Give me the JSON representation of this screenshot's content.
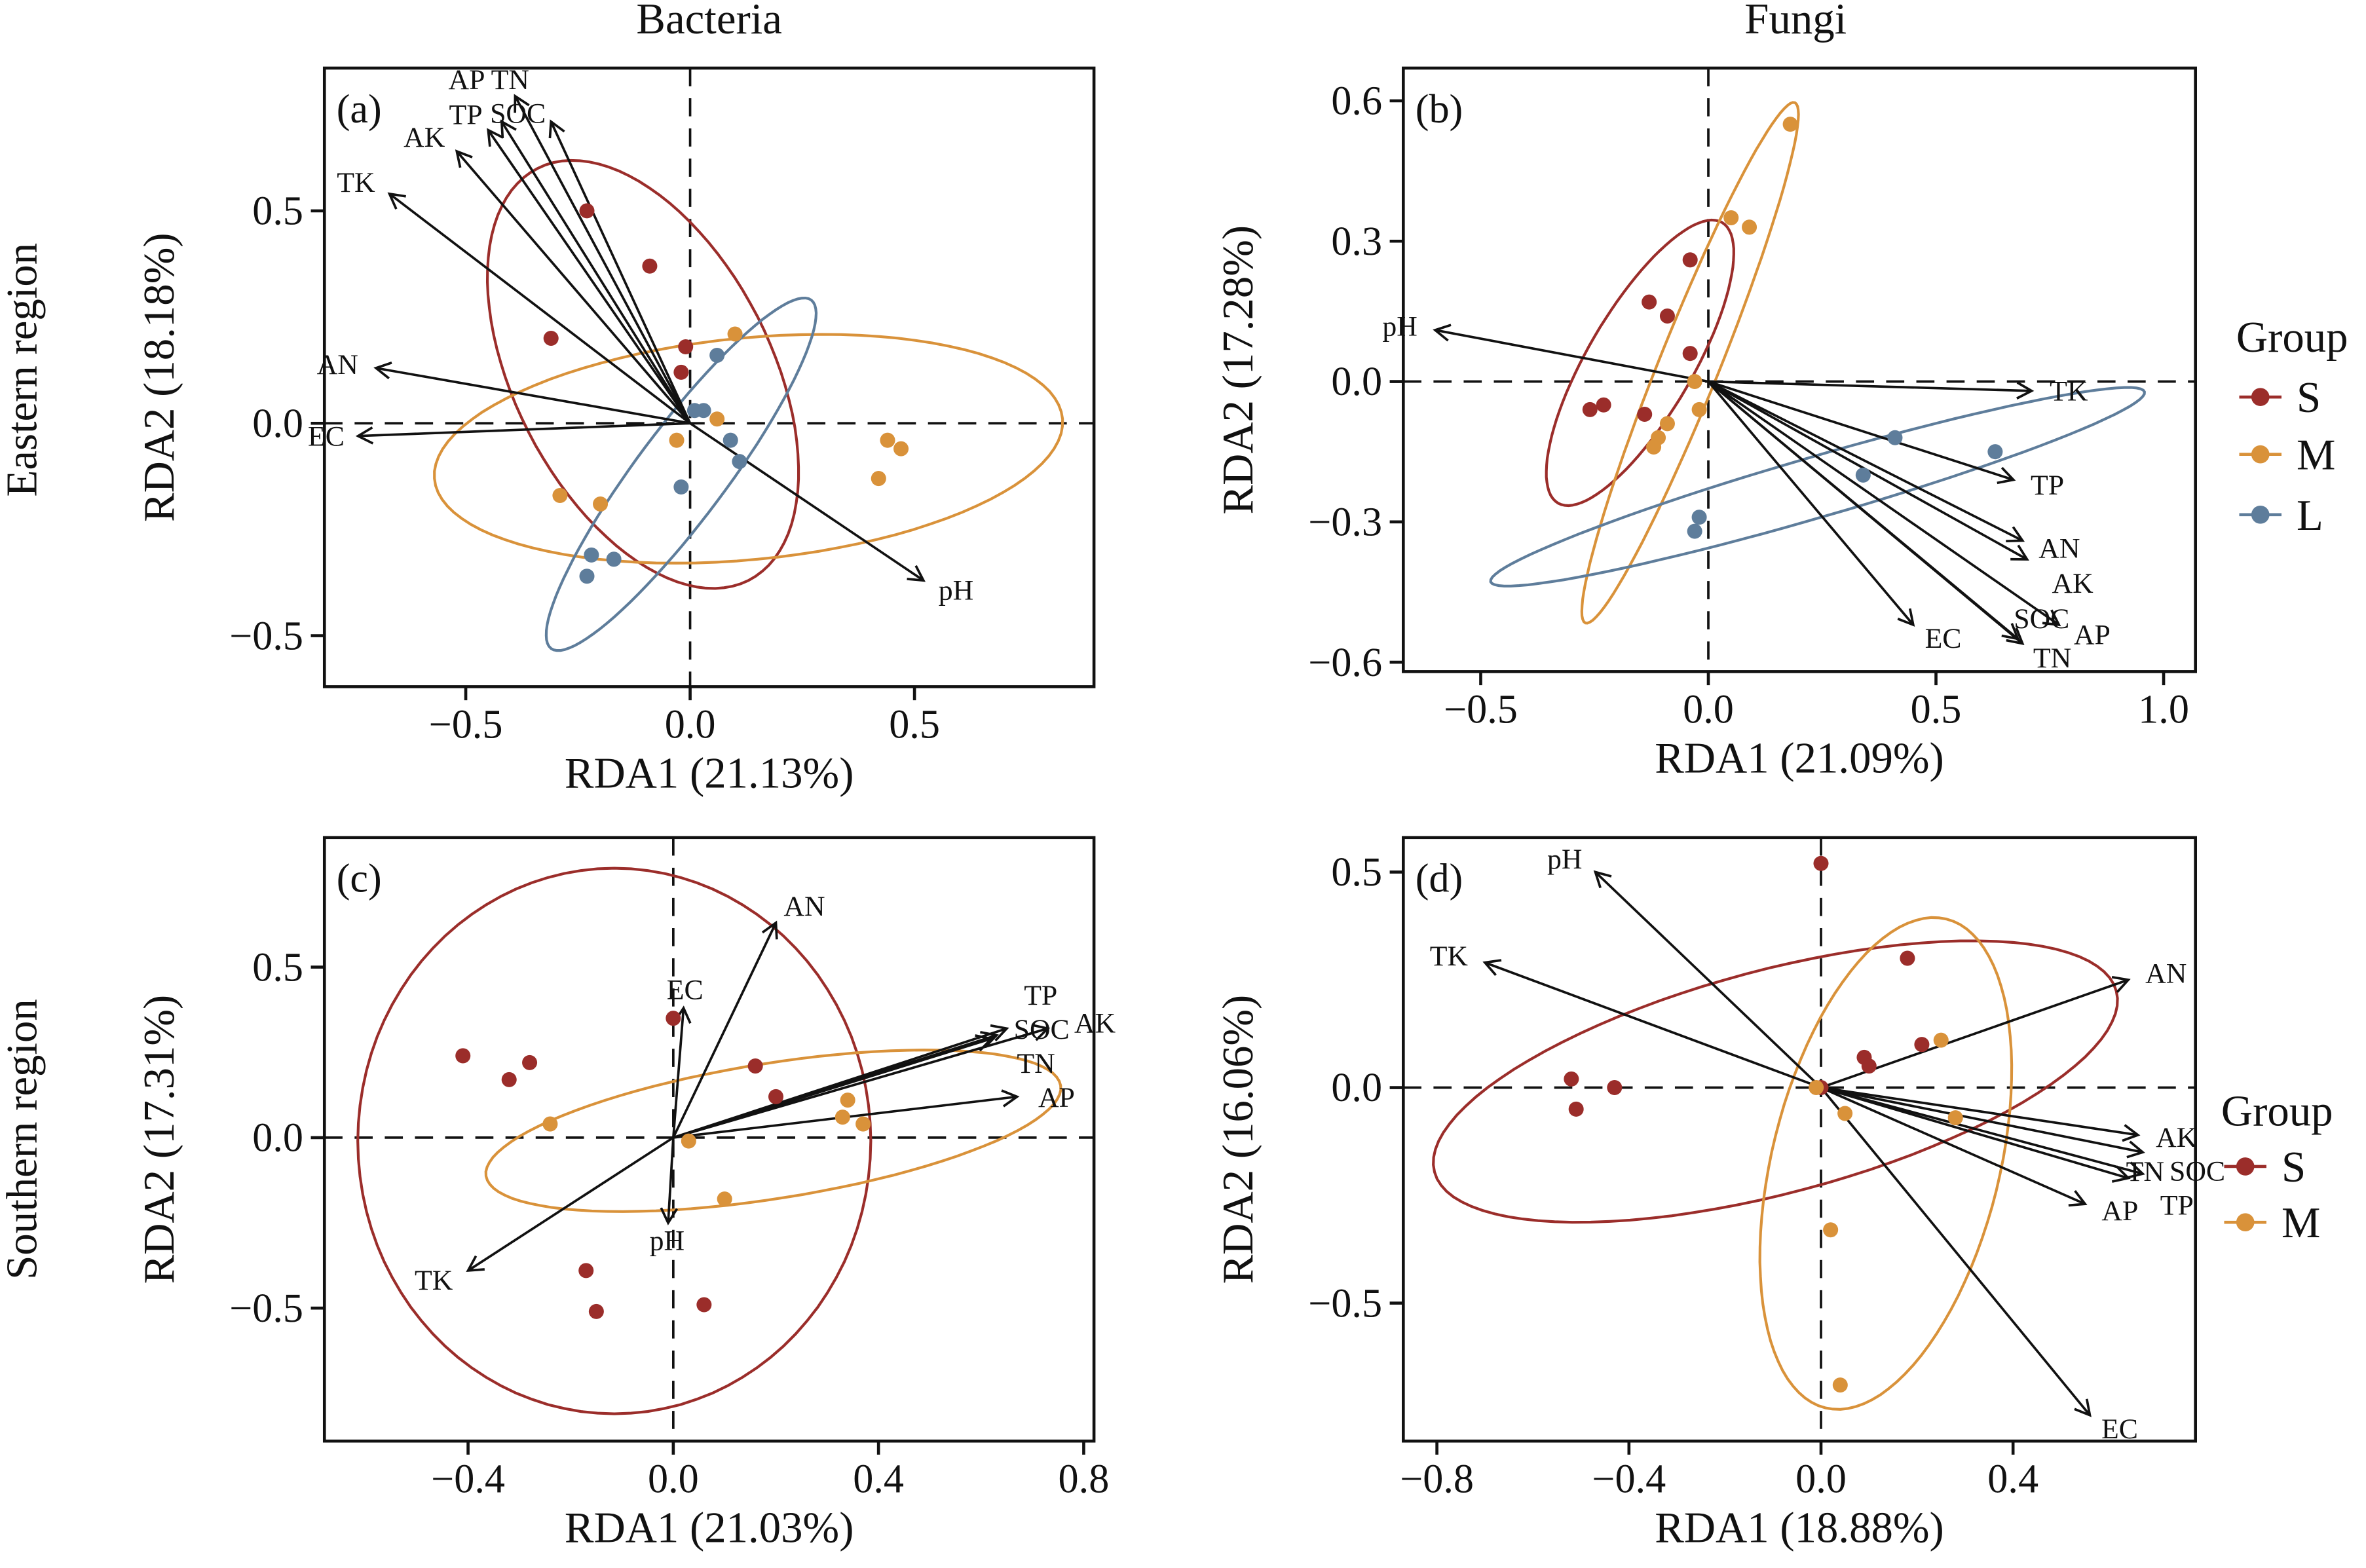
{
  "headers": {
    "col1": "Bacteria",
    "col2": "Fungi",
    "row1": "Eastern region",
    "row2": "Southern region"
  },
  "legend_east": {
    "title": "Group",
    "items": [
      "S",
      "M",
      "L"
    ]
  },
  "legend_south": {
    "title": "Group",
    "items": [
      "S",
      "M"
    ]
  },
  "colors": {
    "S": "#9b2d2a",
    "M": "#d9923a",
    "L": "#5e7d9b"
  },
  "chart_data": [
    {
      "type": "scatter",
      "panel": "(a)",
      "title": "Bacteria",
      "region": "Eastern region",
      "xlabel": "RDA1 (21.13%)",
      "ylabel": "RDA2 (18.18%)",
      "xlim": [
        -0.815,
        0.9
      ],
      "ylim": [
        -0.62,
        0.836
      ],
      "xticks": [
        -0.5,
        0.0,
        0.5
      ],
      "xtick_labels": [
        "−0.5",
        "0.0",
        "0.5"
      ],
      "yticks": [
        -0.5,
        0.0,
        0.5
      ],
      "ytick_labels": [
        "−0.5",
        "0.0",
        "0.5"
      ],
      "series": [
        {
          "name": "S",
          "points": [
            [
              -0.23,
              0.5
            ],
            [
              -0.09,
              0.37
            ],
            [
              -0.31,
              0.2
            ],
            [
              -0.01,
              0.18
            ],
            [
              -0.02,
              0.12
            ]
          ],
          "ellipse": {
            "center": [
              -0.105,
              0.115
            ],
            "u": [
              -0.235,
              0.485
            ],
            "v": [
              0.255,
              0.136
            ]
          }
        },
        {
          "name": "M",
          "points": [
            [
              0.1,
              0.21
            ],
            [
              0.06,
              0.01
            ],
            [
              -0.03,
              -0.04
            ],
            [
              -0.29,
              -0.17
            ],
            [
              -0.2,
              -0.19
            ],
            [
              0.44,
              -0.04
            ],
            [
              0.47,
              -0.06
            ],
            [
              0.42,
              -0.13
            ]
          ],
          "ellipse": {
            "center": [
              0.13,
              -0.06
            ],
            "u": [
              0.7,
              0.07
            ],
            "v": [
              0.02,
              -0.26
            ]
          }
        },
        {
          "name": "L",
          "points": [
            [
              0.06,
              0.16
            ],
            [
              0.01,
              0.03
            ],
            [
              0.03,
              0.03
            ],
            [
              0.09,
              -0.04
            ],
            [
              0.11,
              -0.09
            ],
            [
              -0.02,
              -0.15
            ],
            [
              -0.22,
              -0.31
            ],
            [
              -0.17,
              -0.32
            ],
            [
              -0.23,
              -0.36
            ]
          ],
          "ellipse": {
            "center": [
              -0.02,
              -0.12
            ],
            "u": [
              0.29,
              0.41
            ],
            "v": [
              0.08,
              -0.064
            ]
          }
        }
      ],
      "vectors": [
        {
          "name": "TK",
          "x": -0.67,
          "y": 0.54
        },
        {
          "name": "AK",
          "x": -0.52,
          "y": 0.64
        },
        {
          "name": "TP",
          "x": -0.45,
          "y": 0.69
        },
        {
          "name": "AP",
          "x": -0.42,
          "y": 0.71
        },
        {
          "name": "TN",
          "x": -0.39,
          "y": 0.77
        },
        {
          "name": "SOC",
          "x": -0.31,
          "y": 0.71
        },
        {
          "name": "AN",
          "x": -0.7,
          "y": 0.13
        },
        {
          "name": "EC",
          "x": -0.74,
          "y": -0.03
        },
        {
          "name": "pH",
          "x": 0.52,
          "y": -0.37
        }
      ]
    },
    {
      "type": "scatter",
      "panel": "(b)",
      "title": "Fungi",
      "region": "Eastern region",
      "xlabel": "RDA1 (21.09%)",
      "ylabel": "RDA2 (17.28%)",
      "xlim": [
        -0.67,
        1.07
      ],
      "ylim": [
        -0.62,
        0.67
      ],
      "xticks": [
        -0.5,
        0.0,
        0.5,
        1.0
      ],
      "xtick_labels": [
        "−0.5",
        "0.0",
        "0.5",
        "1.0"
      ],
      "yticks": [
        -0.6,
        -0.3,
        0.0,
        0.3,
        0.6
      ],
      "ytick_labels": [
        "−0.6",
        "−0.3",
        "0.0",
        "0.3",
        "0.6"
      ],
      "series": [
        {
          "name": "S",
          "points": [
            [
              -0.04,
              0.26
            ],
            [
              -0.13,
              0.17
            ],
            [
              -0.09,
              0.14
            ],
            [
              -0.04,
              0.06
            ],
            [
              -0.26,
              -0.06
            ],
            [
              -0.23,
              -0.05
            ],
            [
              -0.14,
              -0.07
            ]
          ],
          "ellipse": {
            "center": [
              -0.15,
              0.04
            ],
            "u": [
              0.18,
              0.3
            ],
            "v": [
              0.1,
              -0.056
            ]
          }
        },
        {
          "name": "M",
          "points": [
            [
              0.18,
              0.55
            ],
            [
              0.05,
              0.35
            ],
            [
              0.09,
              0.33
            ],
            [
              -0.03,
              0.0
            ],
            [
              -0.02,
              -0.06
            ],
            [
              -0.09,
              -0.09
            ],
            [
              -0.11,
              -0.12
            ],
            [
              -0.12,
              -0.14
            ]
          ],
          "ellipse": {
            "center": [
              -0.04,
              0.04
            ],
            "u": [
              0.23,
              0.556
            ],
            "v": [
              0.061,
              -0.024
            ]
          }
        },
        {
          "name": "L",
          "points": [
            [
              0.41,
              -0.12
            ],
            [
              0.63,
              -0.15
            ],
            [
              0.34,
              -0.2
            ],
            [
              -0.02,
              -0.29
            ],
            [
              -0.03,
              -0.32
            ]
          ],
          "ellipse": {
            "center": [
              0.24,
              -0.225
            ],
            "u": [
              0.718,
              0.203
            ],
            "v": [
              0.019,
              -0.062
            ]
          }
        }
      ],
      "vectors": [
        {
          "name": "pH",
          "x": -0.6,
          "y": 0.11
        },
        {
          "name": "TK",
          "x": 0.71,
          "y": -0.02
        },
        {
          "name": "TP",
          "x": 0.67,
          "y": -0.21
        },
        {
          "name": "AN",
          "x": 0.69,
          "y": -0.34
        },
        {
          "name": "AK",
          "x": 0.7,
          "y": -0.38
        },
        {
          "name": "AP",
          "x": 0.77,
          "y": -0.52
        },
        {
          "name": "TN",
          "x": 0.69,
          "y": -0.56
        },
        {
          "name": "SOC",
          "x": 0.68,
          "y": -0.55
        },
        {
          "name": "EC",
          "x": 0.45,
          "y": -0.52
        }
      ]
    },
    {
      "type": "scatter",
      "panel": "(c)",
      "title": "Bacteria",
      "region": "Southern region",
      "xlabel": "RDA1 (21.03%)",
      "ylabel": "RDA2 (17.31%)",
      "xlim": [
        -0.68,
        0.82
      ],
      "ylim": [
        -0.89,
        0.88
      ],
      "xticks": [
        -0.4,
        0.0,
        0.4,
        0.8
      ],
      "xtick_labels": [
        "−0.4",
        "0.0",
        "0.4",
        "0.8"
      ],
      "yticks": [
        -0.5,
        0.0,
        0.5
      ],
      "ytick_labels": [
        "−0.5",
        "0.0",
        "0.5"
      ],
      "series": [
        {
          "name": "S",
          "points": [
            [
              -0.41,
              0.24
            ],
            [
              -0.32,
              0.17
            ],
            [
              -0.28,
              0.22
            ],
            [
              0.0,
              0.35
            ],
            [
              0.16,
              0.21
            ],
            [
              0.2,
              0.12
            ],
            [
              -0.17,
              -0.39
            ],
            [
              -0.15,
              -0.51
            ],
            [
              0.06,
              -0.49
            ]
          ],
          "ellipse": {
            "center": [
              -0.115,
              -0.01
            ],
            "u": [
              0.5,
              0.0
            ],
            "v": [
              0.0,
              0.8
            ]
          }
        },
        {
          "name": "M",
          "points": [
            [
              -0.24,
              0.04
            ],
            [
              0.03,
              -0.01
            ],
            [
              0.1,
              -0.18
            ],
            [
              0.33,
              0.06
            ],
            [
              0.34,
              0.11
            ],
            [
              0.37,
              0.04
            ]
          ],
          "ellipse": {
            "center": [
              0.195,
              0.02
            ],
            "u": [
              0.56,
              0.133
            ],
            "v": [
              0.021,
              -0.196
            ]
          }
        }
      ],
      "vectors": [
        {
          "name": "AN",
          "x": 0.2,
          "y": 0.63
        },
        {
          "name": "EC",
          "x": 0.02,
          "y": 0.38
        },
        {
          "name": "SOC",
          "x": 0.63,
          "y": 0.3
        },
        {
          "name": "TN",
          "x": 0.62,
          "y": 0.29
        },
        {
          "name": "TP",
          "x": 0.65,
          "y": 0.32
        },
        {
          "name": "AK",
          "x": 0.73,
          "y": 0.32
        },
        {
          "name": "AP",
          "x": 0.67,
          "y": 0.12
        },
        {
          "name": "pH",
          "x": -0.01,
          "y": -0.25
        },
        {
          "name": "TK",
          "x": -0.4,
          "y": -0.39
        }
      ]
    },
    {
      "type": "scatter",
      "panel": "(d)",
      "title": "Fungi",
      "region": "Southern region",
      "xlabel": "RDA1 (18.88%)",
      "ylabel": "RDA2 (16.06%)",
      "xlim": [
        -0.87,
        0.78
      ],
      "ylim": [
        -0.82,
        0.58
      ],
      "xticks": [
        -0.8,
        -0.4,
        0.0,
        0.4
      ],
      "xtick_labels": [
        "−0.8",
        "−0.4",
        "0.0",
        "0.4"
      ],
      "yticks": [
        -0.5,
        0.0,
        0.5
      ],
      "ytick_labels": [
        "−0.5",
        "0.0",
        "0.5"
      ],
      "series": [
        {
          "name": "S",
          "points": [
            [
              0.0,
              0.52
            ],
            [
              0.18,
              0.3
            ],
            [
              0.09,
              0.07
            ],
            [
              0.1,
              0.05
            ],
            [
              0.21,
              0.1
            ],
            [
              0.0,
              0.0
            ],
            [
              -0.52,
              0.02
            ],
            [
              -0.43,
              0.0
            ],
            [
              -0.51,
              -0.05
            ]
          ],
          "ellipse": {
            "center": [
              -0.095,
              0.014
            ],
            "u": [
              0.71,
              0.21
            ],
            "v": [
              0.06,
              -0.25
            ]
          }
        },
        {
          "name": "M",
          "points": [
            [
              0.25,
              0.11
            ],
            [
              0.05,
              -0.06
            ],
            [
              0.02,
              -0.33
            ],
            [
              0.04,
              -0.69
            ],
            [
              0.28,
              -0.07
            ],
            [
              -0.01,
              0.0
            ]
          ],
          "ellipse": {
            "center": [
              0.135,
              -0.176
            ],
            "u": [
              0.126,
              0.567
            ],
            "v": [
              0.23,
              -0.063
            ]
          }
        }
      ],
      "vectors": [
        {
          "name": "pH",
          "x": -0.47,
          "y": 0.5
        },
        {
          "name": "TK",
          "x": -0.7,
          "y": 0.29
        },
        {
          "name": "AN",
          "x": 0.64,
          "y": 0.25
        },
        {
          "name": "AK",
          "x": 0.66,
          "y": -0.11
        },
        {
          "name": "SOC",
          "x": 0.67,
          "y": -0.15
        },
        {
          "name": "TP",
          "x": 0.67,
          "y": -0.2
        },
        {
          "name": "TN",
          "x": 0.64,
          "y": -0.21
        },
        {
          "name": "AP",
          "x": 0.55,
          "y": -0.27
        },
        {
          "name": "EC",
          "x": 0.56,
          "y": -0.76
        }
      ]
    }
  ]
}
